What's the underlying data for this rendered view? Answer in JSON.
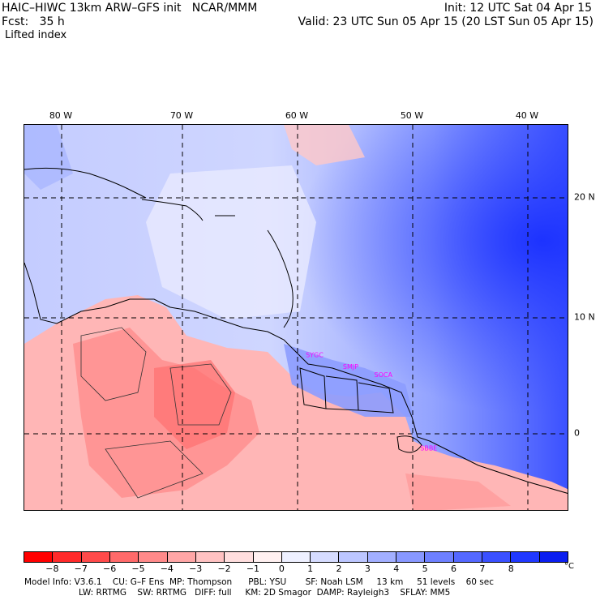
{
  "header": {
    "model_line": "HAIC–HIWC 13km ARW–GFS init   NCAR/MMM",
    "init_line": "Init: 12 UTC Sat 04 Apr 15",
    "fcst_line": "Fcst:   35 h",
    "valid_line": "Valid: 23 UTC Sun 05 Apr 15 (20 LST Sun 05 Apr 15)",
    "field_name": "Lifted index"
  },
  "map": {
    "longitudes": [
      {
        "label": "80 W",
        "value": -80
      },
      {
        "label": "70 W",
        "value": -70
      },
      {
        "label": "60 W",
        "value": -60
      },
      {
        "label": "50 W",
        "value": -50
      },
      {
        "label": "40 W",
        "value": -40
      }
    ],
    "latitudes": [
      {
        "label": "20 N",
        "value": 20
      },
      {
        "label": "10 N",
        "value": 10
      },
      {
        "label": "0",
        "value": 0
      }
    ],
    "stations": [
      {
        "name": "SYGC",
        "lon": -58.3,
        "lat": 6.5
      },
      {
        "name": "SMJP",
        "lon": -55.2,
        "lat": 5.5
      },
      {
        "name": "SOCA",
        "lon": -52.4,
        "lat": 4.8
      },
      {
        "name": "SBBE",
        "lon": -48.5,
        "lat": -1.4
      }
    ]
  },
  "colorbar": {
    "labels": [
      "−8",
      "−7",
      "−6",
      "−5",
      "−4",
      "−3",
      "−2",
      "−1",
      "0",
      "1",
      "2",
      "3",
      "4",
      "5",
      "6",
      "7",
      "8"
    ],
    "unit": "°C",
    "colors": [
      "#ff0000",
      "#ff2a2a",
      "#ff4a4a",
      "#ff6a6a",
      "#ff8a8a",
      "#ffa6a6",
      "#ffc2c2",
      "#ffdede",
      "#fff0f0",
      "#eef0ff",
      "#d6dcff",
      "#bcc6ff",
      "#a2afff",
      "#8898ff",
      "#6e80ff",
      "#5468ff",
      "#3a50ff",
      "#2038ff",
      "#0a1ef0"
    ]
  },
  "footer": {
    "line1": [
      "Model Info: V3.6.1",
      "CU: G–F Ens",
      "MP: Thompson",
      "PBL: YSU",
      "SF: Noah LSM",
      "13 km",
      "51 levels",
      "60 sec"
    ],
    "line2": [
      "LW: RRTMG",
      "SW: RRTMG",
      "DIFF: full",
      "KM: 2D Smagor",
      "DAMP: Rayleigh3",
      "SFLAY: MM5"
    ]
  }
}
